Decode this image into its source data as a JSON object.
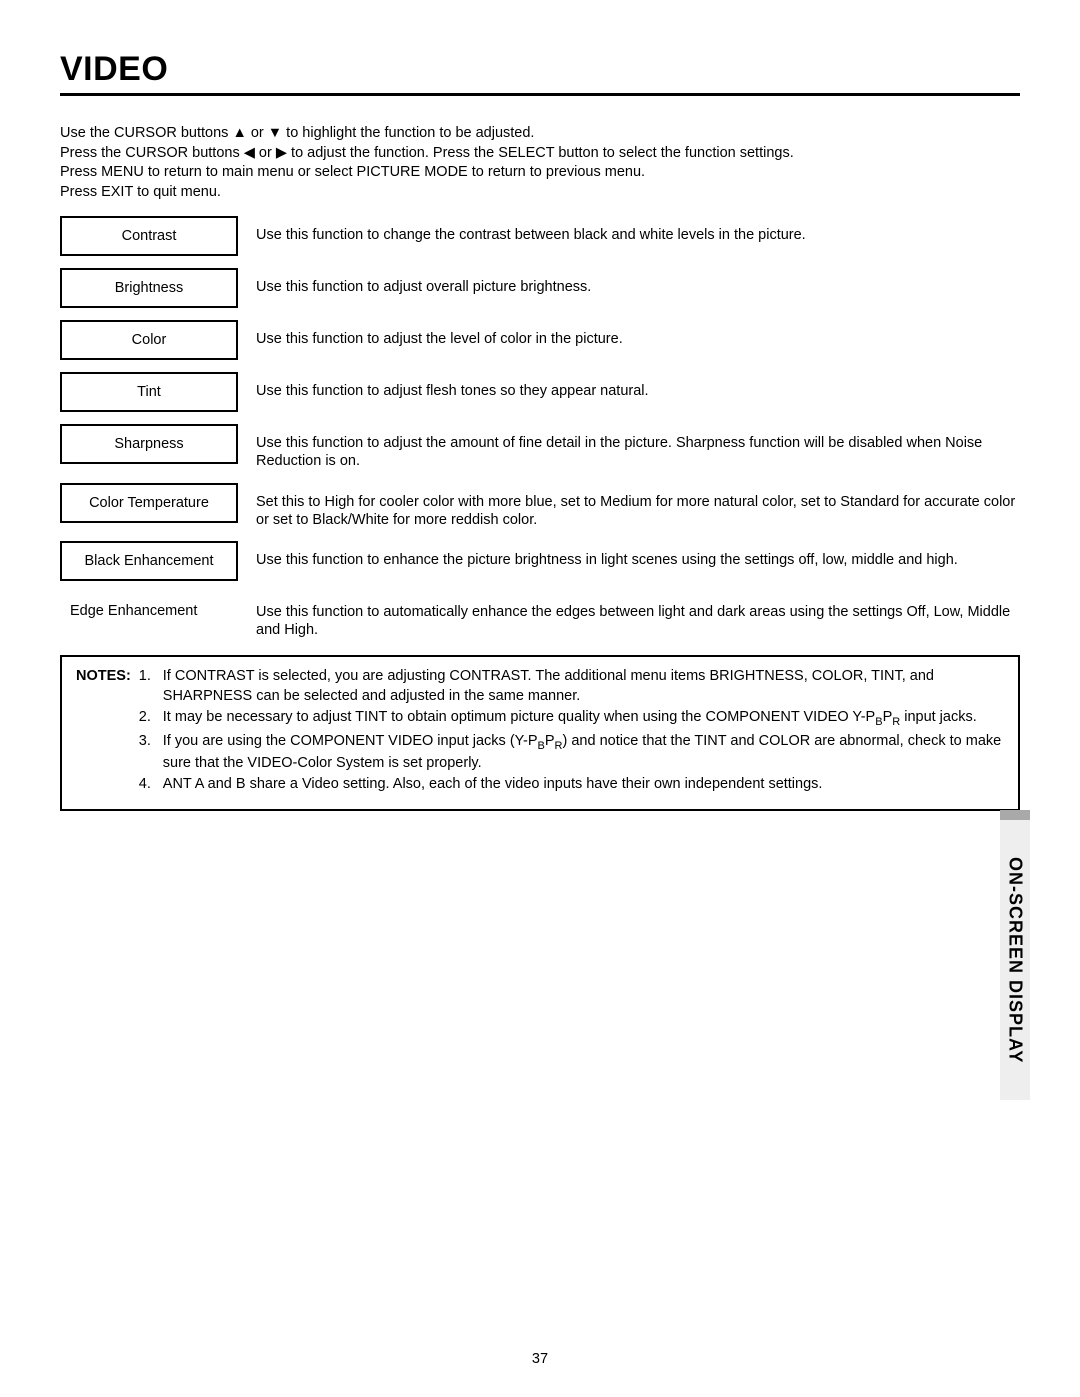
{
  "title": "VIDEO",
  "intro": {
    "line1_pre": "Use the CURSOR buttons ",
    "line1_mid": " or ",
    "line1_post": " to highlight the function to be adjusted.",
    "line2_pre": "Press the CURSOR buttons ",
    "line2_mid": " or ",
    "line2_post": " to adjust the function.  Press the SELECT button to select the function settings.",
    "line3": "Press MENU to return to main menu or select PICTURE MODE to return to previous menu.",
    "line4": "Press EXIT to quit menu."
  },
  "arrows": {
    "up": "▲",
    "down": "▼",
    "left": "◀",
    "right": "▶"
  },
  "functions": [
    {
      "label": "Contrast",
      "bordered": true,
      "desc": "Use this function to change the contrast between black and white levels in the picture."
    },
    {
      "label": "Brightness",
      "bordered": true,
      "desc": "Use this function to adjust overall picture brightness."
    },
    {
      "label": "Color",
      "bordered": true,
      "desc": "Use this function to adjust the level of color in the picture."
    },
    {
      "label": "Tint",
      "bordered": true,
      "desc": "Use this function to adjust flesh tones so they appear natural."
    },
    {
      "label": "Sharpness",
      "bordered": true,
      "desc": "Use this function to adjust the amount of fine detail in the picture.  Sharpness function will be disabled when Noise Reduction is on."
    },
    {
      "label": "Color Temperature",
      "bordered": true,
      "desc": "Set this to High for cooler color with more blue, set to Medium for more natural color, set to Standard for accurate color or set to Black/White for more reddish color."
    },
    {
      "label": "Black Enhancement",
      "bordered": true,
      "desc": "Use this function to enhance the picture brightness in light scenes using the settings off, low, middle and high."
    },
    {
      "label": "Edge Enhancement",
      "bordered": false,
      "desc": "Use this function to automatically enhance the edges between light and dark areas using the settings Off, Low, Middle and High."
    }
  ],
  "notes": {
    "label": "NOTES:",
    "items": [
      {
        "num": "1.",
        "text_plain": "If CONTRAST is selected, you are adjusting CONTRAST.  The additional menu items BRIGHTNESS, COLOR, TINT, and SHARPNESS can be selected and adjusted in the same manner."
      },
      {
        "num": "2.",
        "text_pre": "It may be necessary to adjust TINT to obtain optimum picture quality when using the COMPONENT VIDEO Y-P",
        "sub1": "B",
        "mid": "P",
        "sub2": "R",
        "text_post": " input jacks."
      },
      {
        "num": "3.",
        "text_pre": "If you are using the COMPONENT VIDEO input jacks (Y-P",
        "sub1": "B",
        "mid": "P",
        "sub2": "R",
        "text_post": ") and notice that the TINT and COLOR are abnormal, check to make sure that the VIDEO-Color System is set properly."
      },
      {
        "num": "4.",
        "text_plain": "ANT A and B share a Video setting.  Also, each of the video inputs have their own independent settings."
      }
    ]
  },
  "side_tab": "ON-SCREEN DISPLAY",
  "page_number": "37",
  "colors": {
    "text": "#000000",
    "background": "#ffffff",
    "tab_bg": "#eeeeee",
    "tab_dark": "#a9a9a9"
  }
}
